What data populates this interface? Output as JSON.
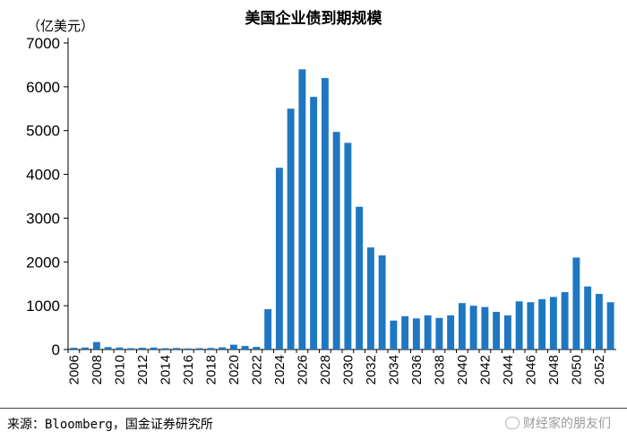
{
  "title": "美国企业债到期规模",
  "unit_label": "（亿美元）",
  "source": "来源：Bloomberg，国金证券研究所",
  "watermark": "财经家的朋友们",
  "bar_color": "#1f77c2",
  "chart_data": {
    "type": "bar",
    "title": "美国企业债到期规模",
    "ylabel": "（亿美元）",
    "ylim": [
      0,
      7000
    ],
    "yticks": [
      0,
      1000,
      2000,
      3000,
      4000,
      5000,
      6000,
      7000
    ],
    "grid": false,
    "categories": [
      "2006",
      "2007",
      "2008",
      "2009",
      "2010",
      "2011",
      "2012",
      "2013",
      "2014",
      "2015",
      "2016",
      "2017",
      "2018",
      "2019",
      "2020",
      "2021",
      "2022",
      "2023",
      "2024",
      "2025",
      "2026",
      "2027",
      "2028",
      "2029",
      "2030",
      "2031",
      "2032",
      "2033",
      "2034",
      "2035",
      "2036",
      "2037",
      "2038",
      "2039",
      "2040",
      "2041",
      "2042",
      "2043",
      "2044",
      "2045",
      "2046",
      "2047",
      "2048",
      "2049",
      "2050",
      "2051",
      "2052",
      "2053"
    ],
    "values": [
      40,
      45,
      170,
      55,
      45,
      30,
      40,
      45,
      30,
      35,
      25,
      30,
      35,
      50,
      110,
      80,
      60,
      920,
      4150,
      5500,
      6400,
      5770,
      6200,
      4970,
      4720,
      3260,
      2330,
      2150,
      660,
      760,
      710,
      780,
      720,
      780,
      1060,
      1000,
      970,
      860,
      780,
      1100,
      1080,
      1150,
      1200,
      1310,
      2100,
      1440,
      1270,
      1080
    ],
    "tick_labels": [
      "2006",
      "2008",
      "2010",
      "2012",
      "2014",
      "2016",
      "2018",
      "2020",
      "2022",
      "2024",
      "2026",
      "2028",
      "2030",
      "2032",
      "2034",
      "2036",
      "2038",
      "2040",
      "2042",
      "2044",
      "2046",
      "2048",
      "2050",
      "2052"
    ]
  }
}
